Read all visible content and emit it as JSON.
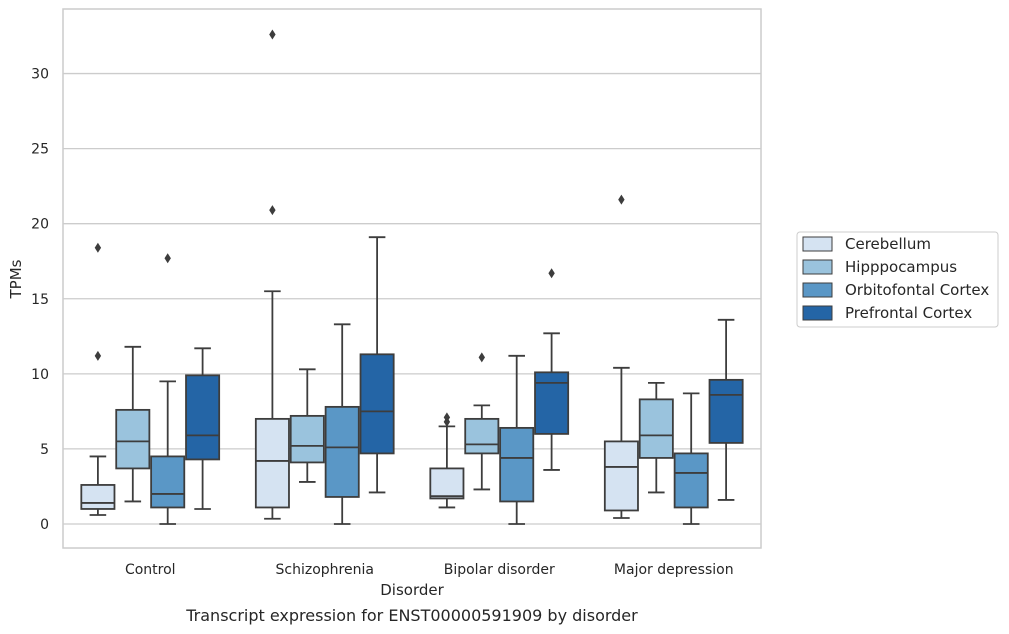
{
  "caption": "Transcript expression for ENST00000591909 by disorder",
  "chart_data": {
    "type": "box",
    "xlabel": "Disorder",
    "ylabel": "TPMs",
    "ylim": [
      -1.6,
      34.3
    ],
    "yticks": [
      0,
      5,
      10,
      15,
      20,
      25,
      30
    ],
    "grid": "horizontal",
    "legend_position": "right",
    "categories": [
      "Control",
      "Schizophrenia",
      "Bipolar disorder",
      "Major depression"
    ],
    "series": [
      {
        "name": "Cerebellum",
        "color": "#d5e3f2",
        "boxes": [
          {
            "whislo": 0.6,
            "q1": 1.0,
            "med": 1.4,
            "q3": 2.6,
            "whishi": 4.5,
            "fliers": [
              11.2,
              18.4
            ]
          },
          {
            "whislo": 0.35,
            "q1": 1.1,
            "med": 4.2,
            "q3": 7.0,
            "whishi": 15.5,
            "fliers": [
              20.9,
              32.6
            ]
          },
          {
            "whislo": 1.1,
            "q1": 1.7,
            "med": 1.85,
            "q3": 3.7,
            "whishi": 6.5,
            "fliers": [
              6.8,
              7.1
            ]
          },
          {
            "whislo": 0.4,
            "q1": 0.9,
            "med": 3.8,
            "q3": 5.5,
            "whishi": 10.4,
            "fliers": [
              21.6
            ]
          }
        ]
      },
      {
        "name": "Hipppocampus",
        "color": "#9ac3dd",
        "boxes": [
          {
            "whislo": 1.5,
            "q1": 3.7,
            "med": 5.5,
            "q3": 7.6,
            "whishi": 11.8,
            "fliers": []
          },
          {
            "whislo": 2.8,
            "q1": 4.1,
            "med": 5.2,
            "q3": 7.2,
            "whishi": 10.3,
            "fliers": []
          },
          {
            "whislo": 2.3,
            "q1": 4.7,
            "med": 5.3,
            "q3": 7.0,
            "whishi": 7.9,
            "fliers": [
              11.1
            ]
          },
          {
            "whislo": 2.1,
            "q1": 4.4,
            "med": 5.9,
            "q3": 8.3,
            "whishi": 9.4,
            "fliers": []
          }
        ]
      },
      {
        "name": "Orbitofontal Cortex",
        "color": "#5a97c6",
        "boxes": [
          {
            "whislo": 0.0,
            "q1": 1.1,
            "med": 2.0,
            "q3": 4.5,
            "whishi": 9.5,
            "fliers": [
              17.7
            ]
          },
          {
            "whislo": 0.0,
            "q1": 1.8,
            "med": 5.1,
            "q3": 7.8,
            "whishi": 13.3,
            "fliers": []
          },
          {
            "whislo": 0.0,
            "q1": 1.5,
            "med": 4.4,
            "q3": 6.4,
            "whishi": 11.2,
            "fliers": []
          },
          {
            "whislo": 0.0,
            "q1": 1.1,
            "med": 3.4,
            "q3": 4.7,
            "whishi": 8.7,
            "fliers": []
          }
        ]
      },
      {
        "name": "Prefrontal Cortex",
        "color": "#2465a6",
        "boxes": [
          {
            "whislo": 1.0,
            "q1": 4.3,
            "med": 5.9,
            "q3": 9.9,
            "whishi": 11.7,
            "fliers": []
          },
          {
            "whislo": 2.1,
            "q1": 4.7,
            "med": 7.5,
            "q3": 11.3,
            "whishi": 19.1,
            "fliers": []
          },
          {
            "whislo": 3.6,
            "q1": 6.0,
            "med": 9.4,
            "q3": 10.1,
            "whishi": 12.7,
            "fliers": [
              16.7
            ]
          },
          {
            "whislo": 1.6,
            "q1": 5.4,
            "med": 8.6,
            "q3": 9.6,
            "whishi": 13.6,
            "fliers": []
          }
        ]
      }
    ]
  }
}
